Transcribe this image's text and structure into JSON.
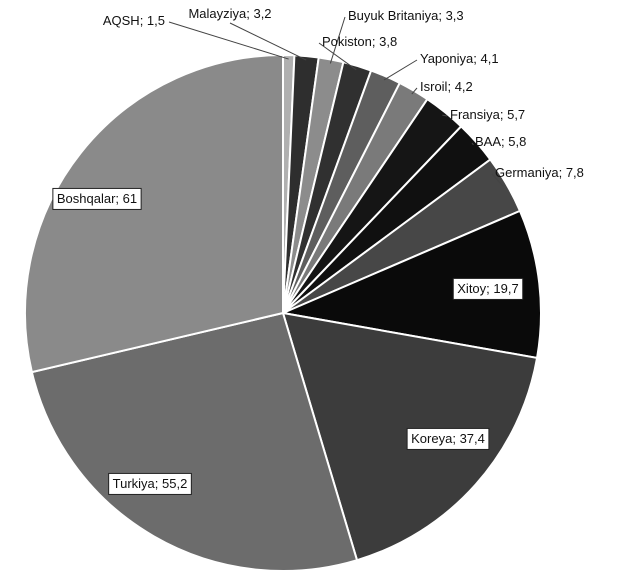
{
  "chart_data": {
    "type": "pie",
    "categories": [
      "AQSH",
      "Malayziya",
      "Buyuk Britaniya",
      "Pokiston",
      "Yaponiya",
      "Isroil",
      "Fransiya",
      "BAA",
      "Germaniya",
      "Xitoy",
      "Koreya",
      "Turkiya",
      "Boshqalar"
    ],
    "values": [
      1.5,
      3.2,
      3.3,
      3.8,
      4.1,
      4.2,
      5.7,
      5.8,
      7.8,
      19.7,
      37.4,
      55.2,
      61
    ],
    "value_labels": [
      "1,5",
      "3,2",
      "3,3",
      "3,8",
      "4,1",
      "4,2",
      "5,7",
      "5,8",
      "7,8",
      "19,7",
      "37,4",
      "55,2",
      "61"
    ],
    "label_separator": "; ",
    "colors": [
      "#b0b0b0",
      "#2e2e2e",
      "#8c8c8c",
      "#303030",
      "#5e5e5e",
      "#7a7a7a",
      "#151515",
      "#101010",
      "#474747",
      "#0a0a0a",
      "#3c3c3c",
      "#6c6c6c",
      "#8a8a8a"
    ]
  }
}
